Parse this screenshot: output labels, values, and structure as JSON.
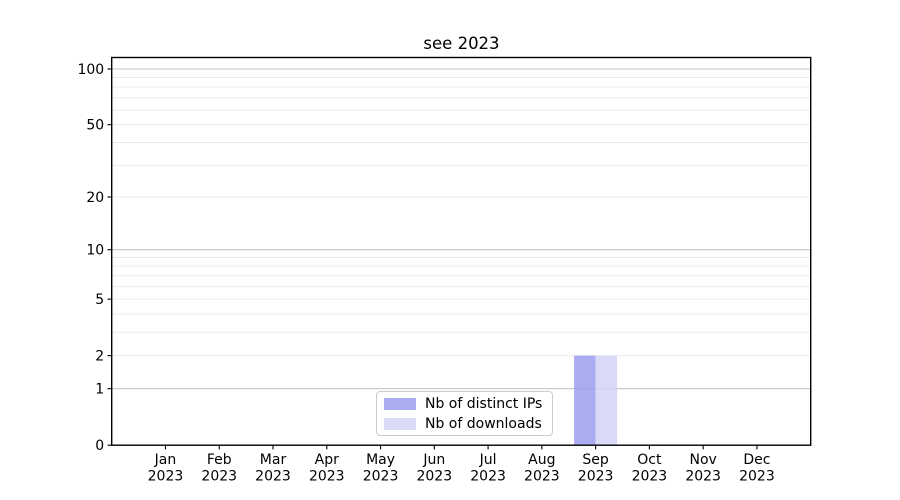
{
  "chart_data": {
    "type": "bar",
    "title": "see 2023",
    "x": {
      "categories": [
        "Jan",
        "Feb",
        "Mar",
        "Apr",
        "May",
        "Jun",
        "Jul",
        "Aug",
        "Sep",
        "Oct",
        "Nov",
        "Dec"
      ],
      "sublabel": "2023"
    },
    "series": [
      {
        "name": "Nb of distinct IPs",
        "color": "#9c9cee",
        "values": [
          0,
          0,
          0,
          0,
          0,
          0,
          0,
          0,
          2,
          0,
          0,
          0
        ]
      },
      {
        "name": "Nb of downloads",
        "color": "#d3d3f6",
        "values": [
          0,
          0,
          0,
          0,
          0,
          0,
          0,
          0,
          2,
          0,
          0,
          0
        ]
      }
    ],
    "bar_opacity": 0.85,
    "y_axis": {
      "scale": "log10(1+y)",
      "ticks": [
        0,
        1,
        2,
        5,
        10,
        20,
        50,
        100
      ],
      "major_gridlines": [
        1,
        10,
        100
      ],
      "minor_gridlines": [
        2,
        3,
        4,
        5,
        6,
        7,
        8,
        9,
        20,
        30,
        40,
        50,
        60,
        70,
        80,
        90
      ],
      "ylim": [
        0,
        115
      ]
    },
    "legend": {
      "position": "lower center"
    },
    "grid": true,
    "colors": {
      "axis": "#000000",
      "text": "#000000",
      "major_grid": "#c6c6c6",
      "minor_grid": "#ebebeb",
      "background": "#ffffff",
      "legend_border": "#cccccc"
    }
  }
}
